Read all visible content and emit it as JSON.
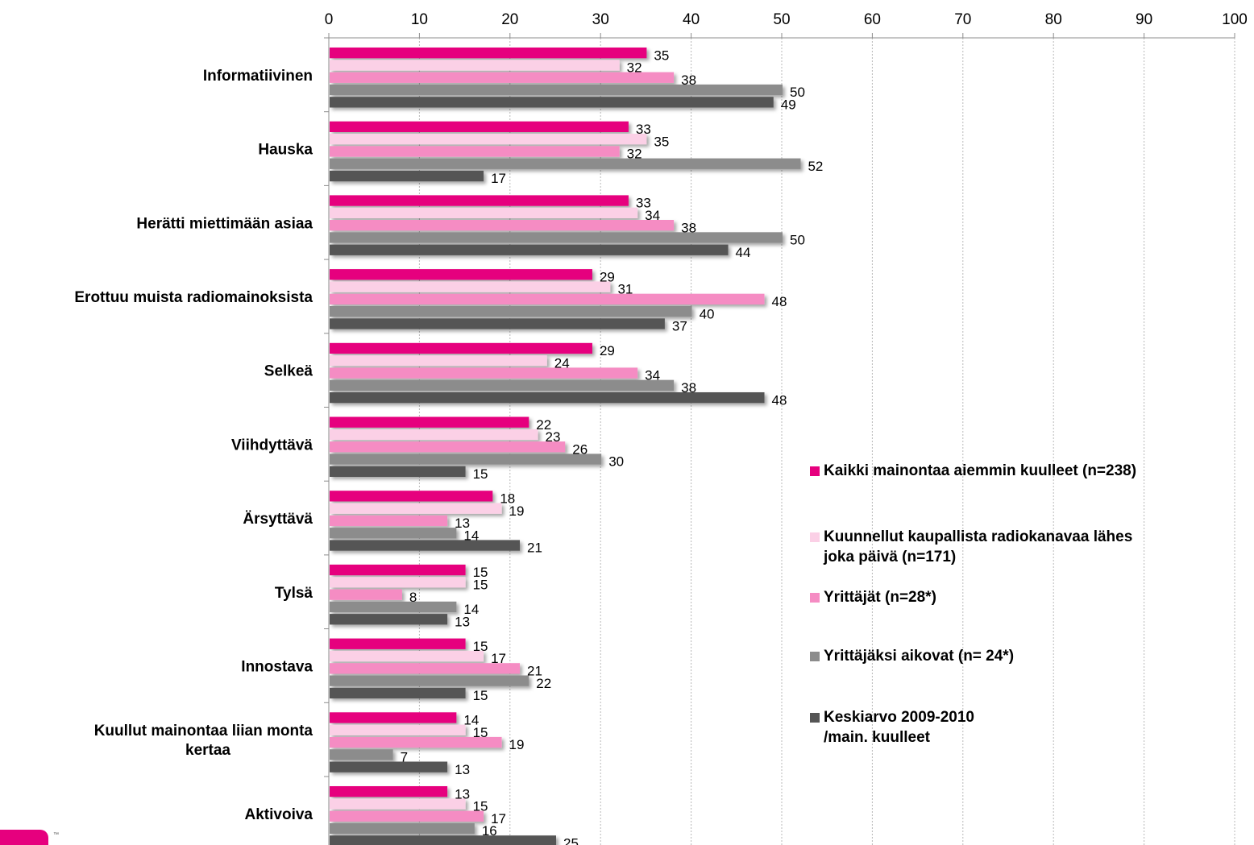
{
  "chart_data": {
    "type": "bar",
    "orientation": "horizontal",
    "categories": [
      "Informatiivinen",
      "Hauska",
      "Herätti miettimään asiaa",
      "Erottuu muista radiomainoksista",
      "Selkeä",
      "Viihdyttävä",
      "Ärsyttävä",
      "Tylsä",
      "Innostava",
      "Kuullut mainontaa liian monta kertaa",
      "Aktivoiva"
    ],
    "category_lines": [
      [
        "Informatiivinen"
      ],
      [
        "Hauska"
      ],
      [
        "Herätti miettimään asiaa"
      ],
      [
        "Erottuu muista radiomainoksista"
      ],
      [
        "Selkeä"
      ],
      [
        "Viihdyttävä"
      ],
      [
        "Ärsyttävä"
      ],
      [
        "Tylsä"
      ],
      [
        "Innostava"
      ],
      [
        "Kuullut mainontaa liian monta",
        "kertaa"
      ],
      [
        "Aktivoiva"
      ]
    ],
    "series": [
      {
        "name": "Kaikki mainontaa aiemmin kuulleet (n=238)",
        "color": "#e6007e",
        "values": [
          35,
          33,
          33,
          29,
          29,
          22,
          18,
          15,
          15,
          14,
          13
        ]
      },
      {
        "name": "Kuunnellut kaupallista radiokanavaa lähes\njoka päivä (n=171)",
        "color": "#fbd0e6",
        "values": [
          32,
          35,
          34,
          31,
          24,
          23,
          19,
          15,
          17,
          15,
          15
        ]
      },
      {
        "name": "Yrittäjät (n=28*)",
        "color": "#f58cc3",
        "values": [
          38,
          32,
          38,
          48,
          34,
          26,
          13,
          8,
          21,
          19,
          17
        ]
      },
      {
        "name": "Yrittäjäksi aikovat (n= 24*)",
        "color": "#8c8c8c",
        "values": [
          50,
          52,
          50,
          40,
          38,
          30,
          14,
          14,
          22,
          7,
          16
        ]
      },
      {
        "name": "Keskiarvo 2009-2010\n /main. kuulleet",
        "color": "#555555",
        "values": [
          49,
          17,
          44,
          37,
          48,
          15,
          21,
          13,
          15,
          13,
          25
        ]
      }
    ],
    "xlim": [
      0,
      100
    ],
    "xticks": [
      0,
      10,
      20,
      30,
      40,
      50,
      60,
      70,
      80,
      90,
      100
    ],
    "grid": true,
    "legend_position": "right"
  }
}
